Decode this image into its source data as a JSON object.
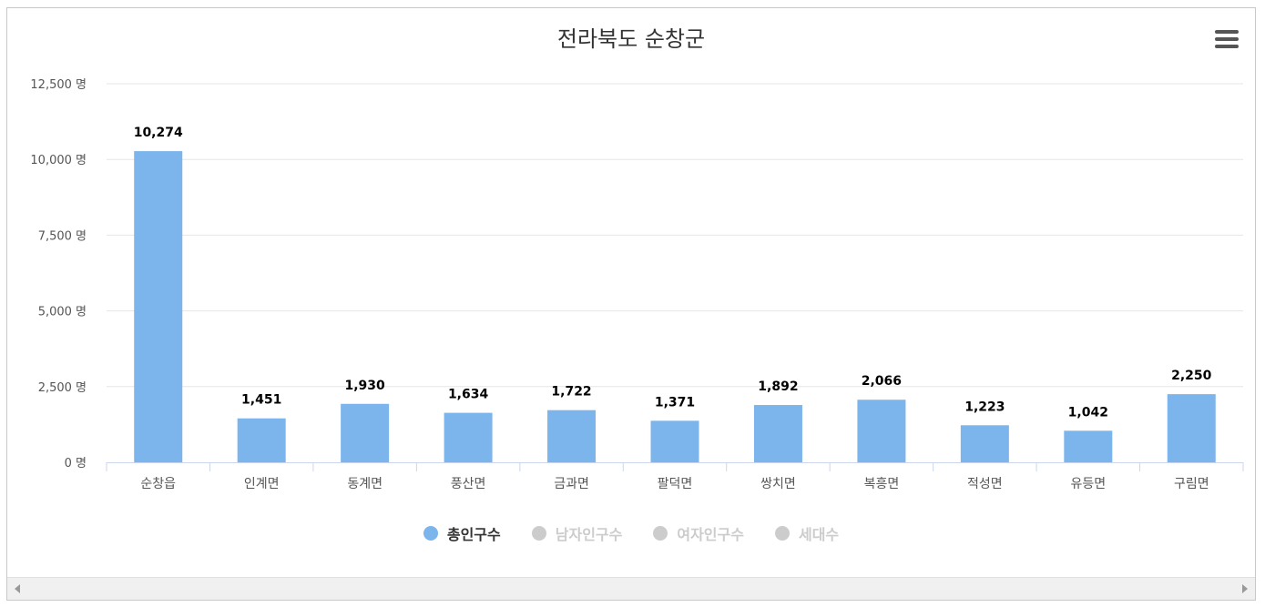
{
  "chart_data": {
    "type": "bar",
    "title": "전라북도 순창군",
    "categories": [
      "순창읍",
      "인계면",
      "동계면",
      "풍산면",
      "금과면",
      "팔덕면",
      "쌍치면",
      "복흥면",
      "적성면",
      "유등면",
      "구림면"
    ],
    "series": [
      {
        "name": "총인구수",
        "values": [
          10274,
          1451,
          1930,
          1634,
          1722,
          1371,
          1892,
          2066,
          1223,
          1042,
          2250
        ],
        "color": "#7cb5ec",
        "visible": true
      },
      {
        "name": "남자인구수",
        "visible": false
      },
      {
        "name": "여자인구수",
        "visible": false
      },
      {
        "name": "세대수",
        "visible": false
      }
    ],
    "ylim": [
      0,
      12500
    ],
    "yticks": [
      "0 명",
      "2,500 명",
      "5,000 명",
      "7,500 명",
      "10,000 명",
      "12,500 명"
    ],
    "data_labels": [
      "10,274",
      "1,451",
      "1,930",
      "1,634",
      "1,722",
      "1,371",
      "1,892",
      "2,066",
      "1,223",
      "1,042",
      "2,250"
    ],
    "grid": true,
    "legend_position": "bottom-center"
  },
  "legend": {
    "items": [
      {
        "label": "총인구수"
      },
      {
        "label": "남자인구수"
      },
      {
        "label": "여자인구수"
      },
      {
        "label": "세대수"
      }
    ]
  },
  "colors": {
    "bar": "#7cb5ec",
    "grid": "#e6e6e6",
    "inactive": "#cccccc"
  },
  "icons": {
    "menu": "hamburger-menu-icon",
    "scroll_left": "arrow-left-icon",
    "scroll_right": "arrow-right-icon"
  }
}
